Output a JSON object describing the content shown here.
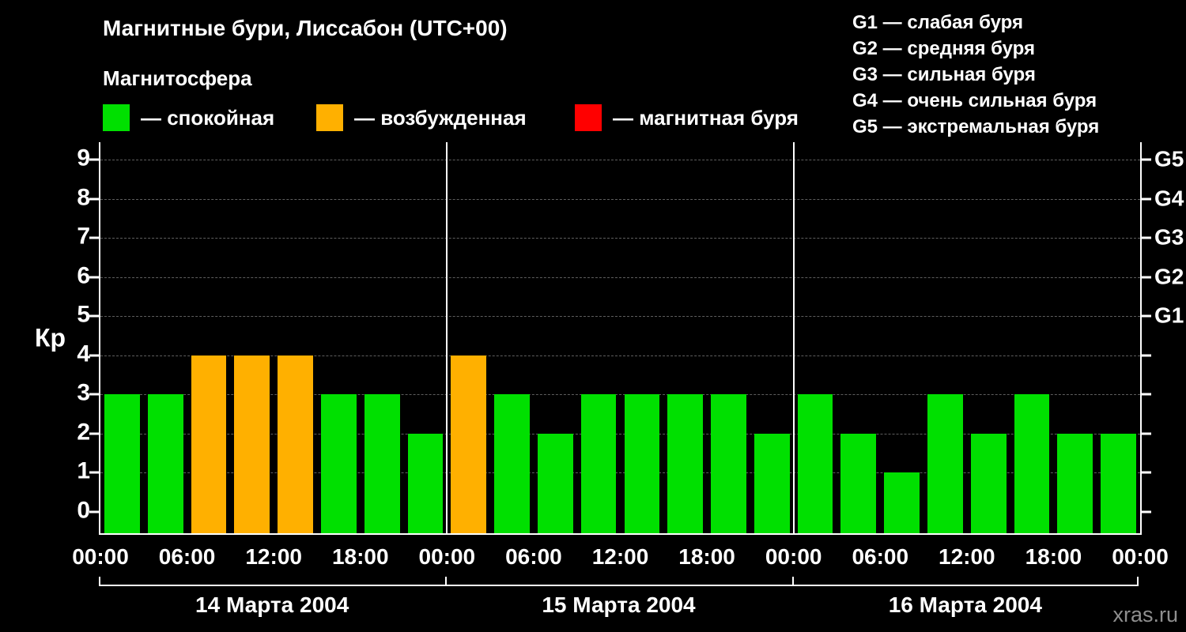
{
  "title": "Магнитные бури, Лиссабон (UTC+00)",
  "subtitle": "Магнитосфера",
  "legend": {
    "items": [
      {
        "key": "quiet",
        "label": "— спокойная"
      },
      {
        "key": "excited",
        "label": "— возбужденная"
      },
      {
        "key": "storm",
        "label": "— магнитная буря"
      }
    ]
  },
  "storm_scale": {
    "lines": [
      "G1 — слабая буря",
      "G2 — средняя буря",
      "G3 — сильная буря",
      "G4 — очень сильная буря",
      "G5 — экстремальная буря"
    ]
  },
  "watermark": "xras.ru",
  "chart_data": {
    "type": "bar",
    "title": "Магнитные бури, Лиссабон (UTC+00)",
    "ylabel": "Кр",
    "ylim": [
      -0.55,
      9.45
    ],
    "yticks": [
      0,
      1,
      2,
      3,
      4,
      5,
      6,
      7,
      8,
      9
    ],
    "right_axis_labels": [
      {
        "label": "G1",
        "value": 5
      },
      {
        "label": "G2",
        "value": 6
      },
      {
        "label": "G3",
        "value": 7
      },
      {
        "label": "G4",
        "value": 8
      },
      {
        "label": "G5",
        "value": 9
      }
    ],
    "x_tick_labels_per_day": [
      "00:00",
      "06:00",
      "12:00",
      "18:00"
    ],
    "x_final_label": "00:00",
    "colors": {
      "quiet": "#00e000",
      "excited": "#ffb000",
      "storm": "#ff0000",
      "grid": "#5e5e5e"
    },
    "color_thresholds": {
      "excited_min": 4,
      "storm_min": 5
    },
    "interval_hours": 3,
    "days": [
      {
        "label": "14 Марта 2004",
        "values": [
          3,
          3,
          4,
          4,
          4,
          3,
          3,
          2
        ]
      },
      {
        "label": "15 Марта 2004",
        "values": [
          4,
          3,
          2,
          3,
          3,
          3,
          3,
          2
        ]
      },
      {
        "label": "16 Марта 2004",
        "values": [
          3,
          2,
          1,
          3,
          2,
          3,
          2,
          2
        ]
      }
    ],
    "legend_position": "top",
    "grid": true
  }
}
